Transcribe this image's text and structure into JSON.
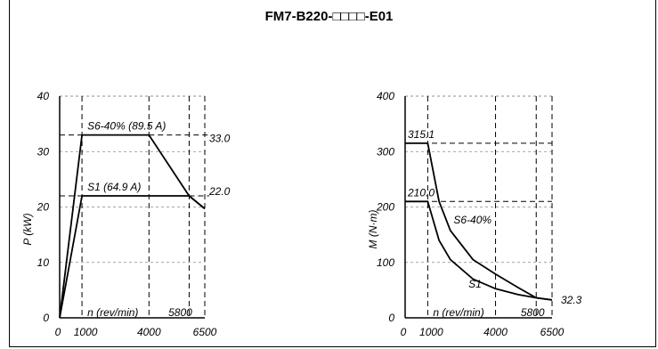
{
  "title": "FM7-B220-□□□□-E01",
  "chart_data": [
    {
      "type": "line",
      "xlabel": "n (rev/min)",
      "ylabel": "P (kW)",
      "xlim": [
        0,
        6500
      ],
      "ylim": [
        0,
        40
      ],
      "x_ticks": [
        "0",
        "1000",
        "4000",
        "6500"
      ],
      "y_ticks": [
        "0",
        "10",
        "20",
        "30",
        "40"
      ],
      "extra_x_label": "5800",
      "right_labels": [
        "33.0",
        "22.0"
      ],
      "series": [
        {
          "name": "S6-40% (89.5 A)",
          "x": [
            0,
            1000,
            4000,
            5800,
            6500
          ],
          "y": [
            0,
            33.0,
            33.0,
            22.0,
            19.7
          ]
        },
        {
          "name": "S1 (64.9 A)",
          "x": [
            0,
            1000,
            5800,
            6500
          ],
          "y": [
            0,
            22.0,
            22.0,
            19.7
          ]
        }
      ]
    },
    {
      "type": "line",
      "xlabel": "n (rev/min)",
      "ylabel": "M (N·m)",
      "xlim": [
        0,
        6500
      ],
      "ylim": [
        0,
        400
      ],
      "x_ticks": [
        "0",
        "1000",
        "4000",
        "6500"
      ],
      "y_ticks": [
        "0",
        "100",
        "200",
        "300",
        "400"
      ],
      "extra_x_label": "5800",
      "left_labels": [
        "315.1",
        "210.0"
      ],
      "end_label": "32.3",
      "series": [
        {
          "name": "S6-40%",
          "x": [
            0,
            1000,
            1500,
            2000,
            3000,
            4000,
            5000,
            5800,
            6500
          ],
          "y": [
            315.1,
            315.1,
            210.1,
            157.6,
            105.0,
            78.8,
            54.6,
            36.2,
            32.3
          ]
        },
        {
          "name": "S1",
          "x": [
            0,
            1000,
            1500,
            2000,
            3000,
            4000,
            5000,
            5800,
            6500
          ],
          "y": [
            210.0,
            210.0,
            140.0,
            105.0,
            70.0,
            52.5,
            42.0,
            36.2,
            32.3
          ]
        }
      ]
    }
  ]
}
